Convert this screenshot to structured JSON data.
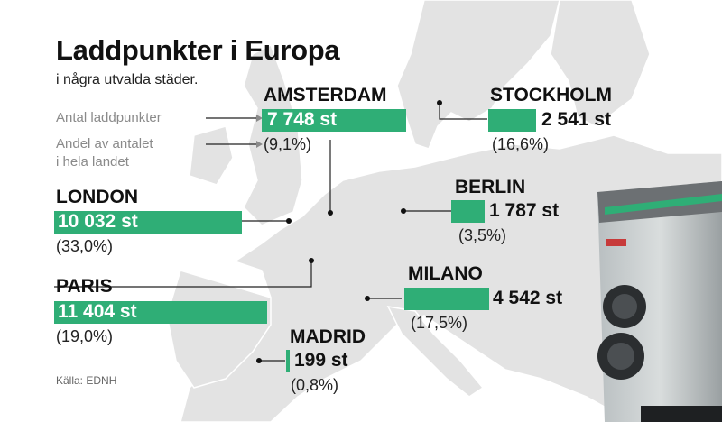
{
  "chart_data": {
    "type": "bar",
    "title": "Laddpunkter i Europa",
    "subtitle": "i några utvalda städer.",
    "source": "Källa: EDNH",
    "legend": {
      "count_label": "Antal laddpunkter",
      "share_label_line1": "Andel av antalet",
      "share_label_line2": "i hela landet"
    },
    "colors": {
      "bar": "#2fae76",
      "map_land": "#e3e3e3",
      "text": "#111111"
    },
    "categories": [
      "AMSTERDAM",
      "STOCKHOLM",
      "LONDON",
      "BERLIN",
      "PARIS",
      "MILANO",
      "MADRID"
    ],
    "values": [
      7748,
      2541,
      10032,
      1787,
      11404,
      4542,
      199
    ],
    "cities": [
      {
        "name": "AMSTERDAM",
        "value": 7748,
        "label": "7 748 st",
        "share": "(9,1%)"
      },
      {
        "name": "STOCKHOLM",
        "value": 2541,
        "label": "2 541 st",
        "share": "(16,6%)"
      },
      {
        "name": "LONDON",
        "value": 10032,
        "label": "10 032 st",
        "share": "(33,0%)"
      },
      {
        "name": "BERLIN",
        "value": 1787,
        "label": "1 787 st",
        "share": "(3,5%)"
      },
      {
        "name": "PARIS",
        "value": 11404,
        "label": "11 404 st",
        "share": "(19,0%)"
      },
      {
        "name": "MILANO",
        "value": 4542,
        "label": "4 542 st",
        "share": "(17,5%)"
      },
      {
        "name": "MADRID",
        "value": 199,
        "label": "199 st",
        "share": "(0,8%)"
      }
    ]
  }
}
